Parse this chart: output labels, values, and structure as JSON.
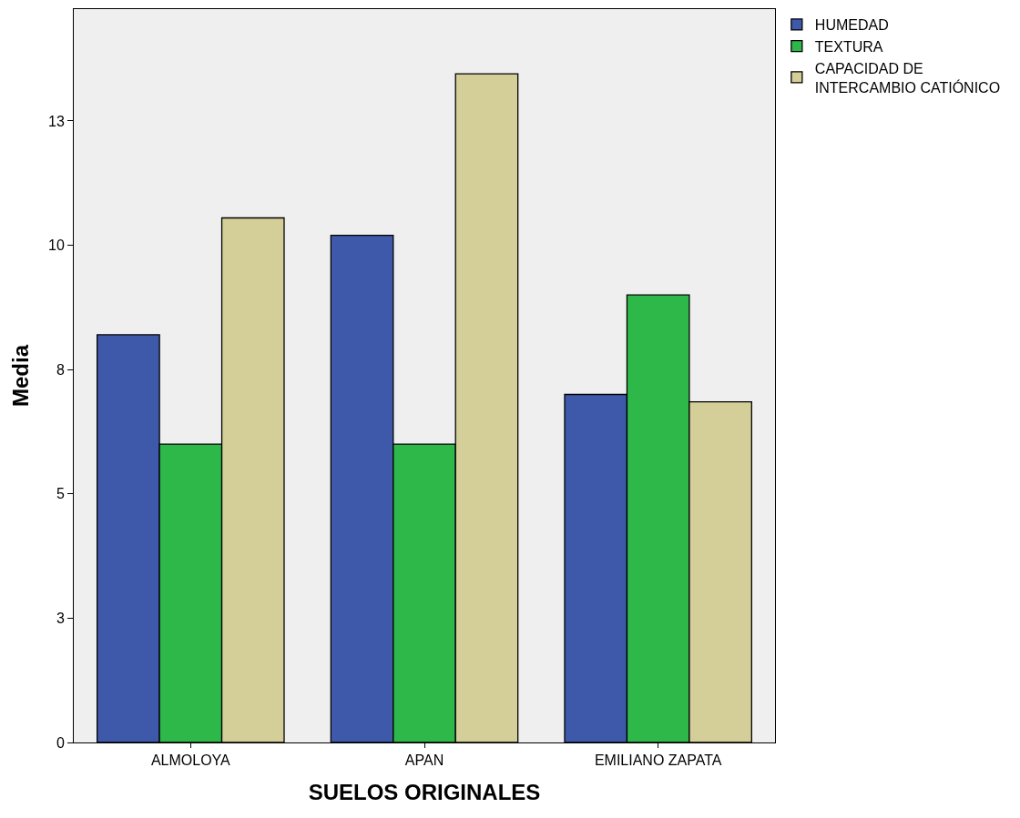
{
  "chart_data": {
    "type": "bar",
    "xlabel": "SUELOS ORIGINALES",
    "ylabel": "Media",
    "categories": [
      "ALMOLOYA",
      "APAN",
      "EMILIANO ZAPATA"
    ],
    "series": [
      {
        "name": "HUMEDAD",
        "color": "#3f59aa",
        "values": [
          8.2,
          10.2,
          7.0
        ]
      },
      {
        "name": "TEXTURA",
        "color": "#2eb84a",
        "values": [
          6.0,
          6.0,
          9.0
        ]
      },
      {
        "name": "CAPACIDAD DE\nINTERCAMBIO CATIÓNICO",
        "color": "#d4cf98",
        "values": [
          10.55,
          13.45,
          6.85
        ]
      }
    ],
    "ylim": [
      0,
      14.75
    ],
    "yticks": [
      0,
      {
        "value": 2.5,
        "label": "3"
      },
      5,
      {
        "value": 7.5,
        "label": "8"
      },
      10,
      {
        "value": 12.5,
        "label": "13"
      }
    ],
    "grid": false,
    "legend": "top right"
  }
}
